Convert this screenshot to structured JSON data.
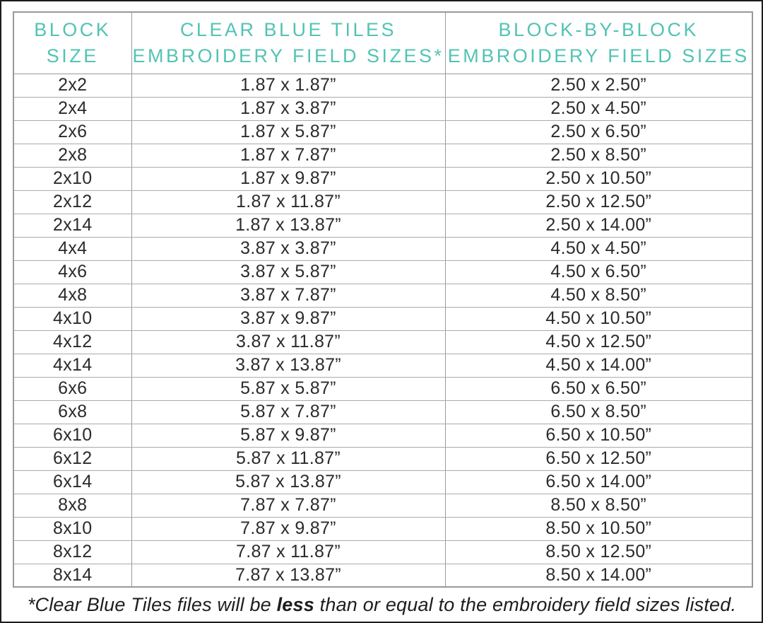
{
  "colors": {
    "accent_teal": "#52c3b4",
    "body_text": "#2b2b2b",
    "grid_line": "#98999c"
  },
  "table": {
    "headers": [
      {
        "line1": "BLOCK",
        "line2": "SIZE"
      },
      {
        "line1": "CLEAR BLUE TILES",
        "line2": "EMBROIDERY FIELD SIZES*"
      },
      {
        "line1": "BLOCK-BY-BLOCK",
        "line2": "EMBROIDERY FIELD SIZES"
      }
    ],
    "rows": [
      {
        "block": "2x2",
        "cbt": "1.87 x 1.87”",
        "bbb": "2.50 x 2.50”"
      },
      {
        "block": "2x4",
        "cbt": "1.87 x 3.87”",
        "bbb": "2.50 x 4.50”"
      },
      {
        "block": "2x6",
        "cbt": "1.87 x 5.87”",
        "bbb": "2.50 x 6.50”"
      },
      {
        "block": "2x8",
        "cbt": "1.87 x 7.87”",
        "bbb": "2.50 x 8.50”"
      },
      {
        "block": "2x10",
        "cbt": "1.87 x 9.87”",
        "bbb": "2.50 x 10.50”"
      },
      {
        "block": "2x12",
        "cbt": "1.87 x 11.87”",
        "bbb": "2.50 x 12.50”"
      },
      {
        "block": "2x14",
        "cbt": "1.87 x 13.87”",
        "bbb": "2.50 x 14.00”"
      },
      {
        "block": "4x4",
        "cbt": "3.87 x 3.87”",
        "bbb": "4.50 x 4.50”"
      },
      {
        "block": "4x6",
        "cbt": "3.87 x 5.87”",
        "bbb": "4.50 x 6.50”"
      },
      {
        "block": "4x8",
        "cbt": "3.87 x 7.87”",
        "bbb": "4.50 x 8.50”"
      },
      {
        "block": "4x10",
        "cbt": "3.87 x 9.87”",
        "bbb": "4.50 x 10.50”"
      },
      {
        "block": "4x12",
        "cbt": "3.87 x 11.87”",
        "bbb": "4.50 x 12.50”"
      },
      {
        "block": "4x14",
        "cbt": "3.87 x 13.87”",
        "bbb": "4.50 x 14.00”"
      },
      {
        "block": "6x6",
        "cbt": "5.87 x 5.87”",
        "bbb": "6.50 x 6.50”"
      },
      {
        "block": "6x8",
        "cbt": "5.87 x 7.87”",
        "bbb": "6.50 x 8.50”"
      },
      {
        "block": "6x10",
        "cbt": "5.87 x 9.87”",
        "bbb": "6.50 x 10.50”"
      },
      {
        "block": "6x12",
        "cbt": "5.87 x 11.87”",
        "bbb": "6.50 x 12.50”"
      },
      {
        "block": "6x14",
        "cbt": "5.87 x 13.87”",
        "bbb": "6.50 x 14.00”"
      },
      {
        "block": "8x8",
        "cbt": "7.87 x 7.87”",
        "bbb": "8.50 x 8.50”"
      },
      {
        "block": "8x10",
        "cbt": "7.87 x 9.87”",
        "bbb": "8.50 x 10.50”"
      },
      {
        "block": "8x12",
        "cbt": "7.87 x 11.87”",
        "bbb": "8.50 x 12.50”"
      },
      {
        "block": "8x14",
        "cbt": "7.87 x 13.87”",
        "bbb": "8.50 x 14.00”"
      }
    ]
  },
  "footnote": {
    "before": "*Clear Blue Tiles files will be ",
    "emphasis": "less",
    "after": " than or equal to the embroidery field sizes listed."
  }
}
